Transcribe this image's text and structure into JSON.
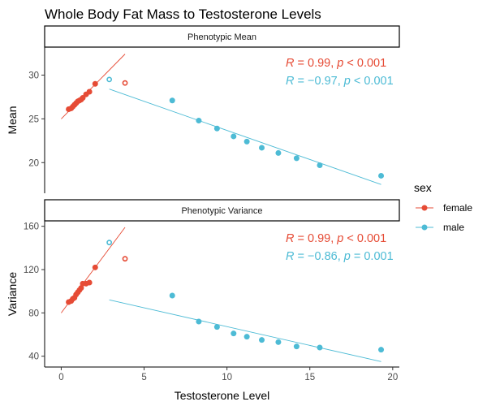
{
  "chart_data": {
    "type": "scatter",
    "title": "Whole Body Fat Mass to Testosterone Levels",
    "xlabel": "Testosterone Level",
    "xlim": [
      -1,
      20.4
    ],
    "xticks": [
      "0",
      "5",
      "10",
      "15",
      "20"
    ],
    "legend": {
      "title": "sex",
      "placement": "right",
      "entries": [
        {
          "label": "female",
          "color": "#E64B35"
        },
        {
          "label": "male",
          "color": "#4DBBD5"
        }
      ]
    },
    "panels": [
      {
        "strip": "Phenotypic Mean",
        "ylabel": "Mean",
        "ylim": [
          16.5,
          33.2
        ],
        "yticks": [
          "20",
          "25",
          "30"
        ],
        "series": [
          {
            "name": "female",
            "color": "#E64B35",
            "x": [
              0.45,
              0.6,
              0.7,
              0.8,
              0.9,
              1.0,
              1.1,
              1.2,
              1.3,
              1.5,
              1.7,
              2.05
            ],
            "y": [
              26.1,
              26.2,
              26.4,
              26.6,
              26.8,
              27.0,
              27.1,
              27.2,
              27.4,
              27.8,
              28.1,
              29.0
            ],
            "outlier": {
              "x": 3.85,
              "y": 29.1
            },
            "fit": {
              "x": [
                0.0,
                3.85
              ],
              "y": [
                25.0,
                32.4
              ]
            },
            "annotation": {
              "r": "0.99",
              "p_op": "<",
              "p": "0.001"
            }
          },
          {
            "name": "male",
            "color": "#4DBBD5",
            "x": [
              6.7,
              8.3,
              9.4,
              10.4,
              11.2,
              12.1,
              13.1,
              14.2,
              15.6,
              19.3
            ],
            "y": [
              27.1,
              24.8,
              23.9,
              23.0,
              22.4,
              21.7,
              21.1,
              20.5,
              19.7,
              18.5
            ],
            "outlier": {
              "x": 2.9,
              "y": 29.5
            },
            "fit": {
              "x": [
                2.9,
                19.3
              ],
              "y": [
                28.4,
                17.5
              ]
            },
            "annotation": {
              "r": "−0.97",
              "p_op": "<",
              "p": "0.001"
            }
          }
        ]
      },
      {
        "strip": "Phenotypic Variance",
        "ylabel": "Variance",
        "ylim": [
          30,
          165
        ],
        "yticks": [
          "40",
          "80",
          "120",
          "160"
        ],
        "series": [
          {
            "name": "female",
            "color": "#E64B35",
            "x": [
              0.45,
              0.6,
              0.7,
              0.8,
              0.9,
              1.0,
              1.1,
              1.2,
              1.3,
              1.5,
              1.7,
              2.05
            ],
            "y": [
              90,
              91,
              93,
              94,
              97,
              99,
              101,
              103,
              107,
              107,
              108,
              122
            ],
            "outlier": {
              "x": 3.85,
              "y": 130
            },
            "fit": {
              "x": [
                0.0,
                3.85
              ],
              "y": [
                80,
                159
              ]
            },
            "annotation": {
              "r": "0.99",
              "p_op": "<",
              "p": "0.001"
            }
          },
          {
            "name": "male",
            "color": "#4DBBD5",
            "x": [
              6.7,
              8.3,
              9.4,
              10.4,
              11.2,
              12.1,
              13.1,
              14.2,
              15.6,
              19.3
            ],
            "y": [
              96,
              72,
              67,
              61,
              58,
              55,
              53,
              49,
              48,
              46
            ],
            "outlier": {
              "x": 2.9,
              "y": 145
            },
            "fit": {
              "x": [
                2.9,
                19.3
              ],
              "y": [
                92,
                35
              ]
            },
            "annotation": {
              "r": "−0.86",
              "p_op": "=",
              "p": "0.001"
            }
          }
        ]
      }
    ]
  }
}
